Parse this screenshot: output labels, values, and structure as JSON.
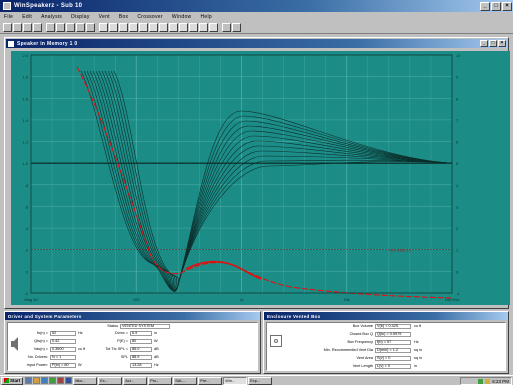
{
  "window": {
    "title": "WinSpeakerz - Sub 10"
  },
  "menu": [
    "File",
    "Edit",
    "Analysis",
    "Display",
    "Vent",
    "Box",
    "Crossover",
    "Window",
    "Help"
  ],
  "document": {
    "title": "Speaker in Memory 1 0"
  },
  "chart_data": {
    "type": "line",
    "series_count": 12,
    "highlight_series": 1,
    "x_ticks": [
      "Mag 10",
      "100",
      "1k",
      "10k",
      "100 kHz"
    ],
    "y_ticks_left": [
      "2.0",
      "1.8",
      "1.6",
      "1.4",
      "1.2",
      "1.0",
      ".8",
      ".6",
      ".4",
      ".2",
      "0",
      "-.2"
    ],
    "y_ticks_right": [
      "10",
      "9",
      "8",
      "7",
      "6",
      "5",
      "4",
      "3",
      "2",
      "1",
      "0",
      "-1"
    ],
    "ref_line_label": "Vent Ratio 1.0",
    "colors": {
      "background": "#1c8c86",
      "curve": "#0b2f2c",
      "highlight": "#e01010",
      "grid": "#4fb0aa"
    }
  },
  "driver_panel": {
    "title": "Driver and System Parameters",
    "status": {
      "label": "Status",
      "value": "VENTED SYSTEM"
    },
    "rows": [
      {
        "l1": "fs(n) =",
        "v1": "52",
        "u1": "Hz",
        "l2": "Dvmc =",
        "v2": "6.9",
        "u2": "in"
      },
      {
        "l1": "Qts(n) =",
        "v1": "0.42",
        "u2l": "",
        "l2": "P(E) =",
        "v2": "80",
        "u2": "W"
      },
      {
        "l1": "Vas(n) =",
        "v1": "0.3600",
        "u1": "cu ft",
        "l2": "Tot Ttc SPL =",
        "v2": "86.0",
        "u2": "dB"
      },
      {
        "l1": "No. Drivers:",
        "v1": "N = 1",
        "u1": "",
        "l2": "SPL",
        "v2": "88.9",
        "u2": "dB"
      },
      {
        "l1": "Input Power:",
        "v1": "P(in) = 80",
        "u1": "W",
        "l2": "",
        "v2": "13.28",
        "u2": "Hz"
      }
    ]
  },
  "box_panel": {
    "title": "Enclosure Vented Box",
    "rows": [
      {
        "label": "Box Volume",
        "value": "V(b) = 0.425",
        "unit": "cu ft"
      },
      {
        "label": "Closed Box Q",
        "value": "Q(tc) = 0.5979",
        "unit": ""
      },
      {
        "label": "Box Frequency",
        "value": "f(b) = 57",
        "unit": "Hz"
      },
      {
        "label": "Min. Recommended Vent Dia",
        "value": "D(min) = 1.2",
        "unit": "sq in"
      },
      {
        "label": "Vent Area",
        "value": "S(v) = 0",
        "unit": "sq in"
      },
      {
        "label": "Vent Length",
        "value": "L(v) = 0",
        "unit": "in"
      }
    ]
  },
  "taskbar": {
    "start_label": "Start",
    "tasks": [
      "Micr...",
      "Ex...",
      "Acr...",
      "Pro...",
      "SAL...",
      "Pre...",
      "Win...",
      "Exp..."
    ],
    "clock": "6:23 PM"
  }
}
